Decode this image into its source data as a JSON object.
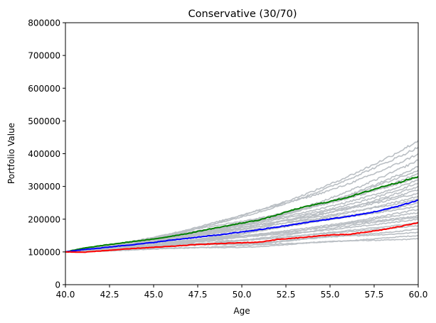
{
  "chart_data": {
    "type": "line",
    "title": "Conservative (30/70)",
    "xlabel": "Age",
    "ylabel": "Portfolio Value",
    "xlim": [
      40,
      60
    ],
    "ylim": [
      0,
      800000
    ],
    "xticks": [
      40.0,
      42.5,
      45.0,
      47.5,
      50.0,
      52.5,
      55.0,
      57.5,
      60.0
    ],
    "xtick_labels": [
      "40.0",
      "42.5",
      "45.0",
      "47.5",
      "50.0",
      "52.5",
      "55.0",
      "57.5",
      "60.0"
    ],
    "yticks": [
      0,
      100000,
      200000,
      300000,
      400000,
      500000,
      600000,
      700000,
      800000
    ],
    "ytick_labels": [
      "0",
      "100000",
      "200000",
      "300000",
      "400000",
      "500000",
      "600000",
      "700000",
      "800000"
    ],
    "grid": false,
    "legend": "none",
    "simulation_color": "#babfc4",
    "simulation_end_values": [
      140000,
      150000,
      160000,
      170000,
      180000,
      190000,
      200000,
      205000,
      210000,
      220000,
      230000,
      240000,
      250000,
      260000,
      270000,
      280000,
      290000,
      300000,
      310000,
      320000,
      330000,
      340000,
      350000,
      360000,
      380000,
      400000,
      420000,
      440000
    ],
    "series": [
      {
        "color": "#008000",
        "x": [
          40,
          41,
          42,
          43,
          44,
          45,
          46,
          47,
          48,
          49,
          50,
          51,
          52,
          53,
          54,
          55,
          56,
          57,
          58,
          59,
          60
        ],
        "values": [
          100000,
          111000,
          119000,
          126000,
          133000,
          139000,
          148000,
          157000,
          168000,
          178000,
          188000,
          198000,
          213000,
          230000,
          243000,
          254000,
          267000,
          283000,
          300000,
          314000,
          330000
        ]
      },
      {
        "color": "#0000ff",
        "x": [
          40,
          41,
          42,
          43,
          44,
          45,
          46,
          47,
          48,
          49,
          50,
          51,
          52,
          53,
          54,
          55,
          56,
          57,
          58,
          59,
          60
        ],
        "values": [
          100000,
          107000,
          112000,
          118000,
          123000,
          129000,
          136000,
          142000,
          148000,
          154000,
          161000,
          168000,
          176000,
          184000,
          193000,
          200000,
          208000,
          217000,
          228000,
          242000,
          258000
        ]
      },
      {
        "color": "#ff0000",
        "x": [
          40,
          41,
          42,
          43,
          44,
          45,
          46,
          47,
          48,
          49,
          50,
          51,
          52,
          53,
          54,
          55,
          56,
          57,
          58,
          59,
          60
        ],
        "values": [
          100000,
          99000,
          103000,
          107000,
          111000,
          114000,
          117000,
          121000,
          124000,
          126000,
          128000,
          130000,
          138000,
          142000,
          147000,
          152000,
          153000,
          160000,
          168000,
          178000,
          190000
        ]
      }
    ]
  }
}
